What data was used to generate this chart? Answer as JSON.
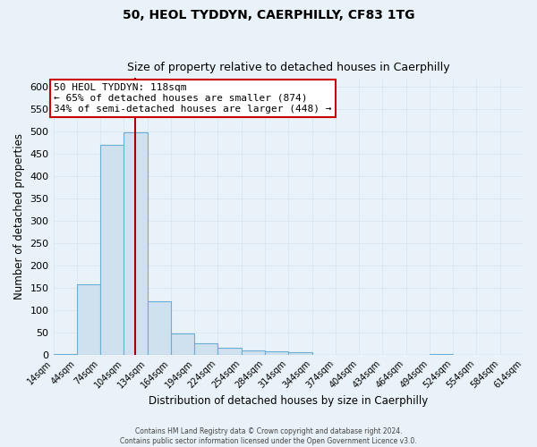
{
  "title": "50, HEOL TYDDYN, CAERPHILLY, CF83 1TG",
  "subtitle": "Size of property relative to detached houses in Caerphilly",
  "xlabel": "Distribution of detached houses by size in Caerphilly",
  "ylabel": "Number of detached properties",
  "bin_edges": [
    14,
    44,
    74,
    104,
    134,
    164,
    194,
    224,
    254,
    284,
    314,
    344,
    374,
    404,
    434,
    464,
    494,
    524,
    554,
    584,
    614
  ],
  "counts": [
    2,
    158,
    470,
    498,
    120,
    47,
    25,
    15,
    10,
    8,
    5,
    0,
    0,
    0,
    0,
    0,
    2,
    0,
    0,
    0
  ],
  "bar_color": "#cfe0ef",
  "bar_edge_color": "#6aaed6",
  "vline_color": "#aa0000",
  "vline_x": 118,
  "annotation_line0": "50 HEOL TYDDYN: 118sqm",
  "annotation_line1": "← 65% of detached houses are smaller (874)",
  "annotation_line2": "34% of semi-detached houses are larger (448) →",
  "annotation_box_color": "#ffffff",
  "annotation_box_edge": "#cc0000",
  "ylim": [
    0,
    620
  ],
  "yticks": [
    0,
    50,
    100,
    150,
    200,
    250,
    300,
    350,
    400,
    450,
    500,
    550,
    600
  ],
  "grid_color": "#dce8f0",
  "plot_bg_color": "#e8f2f8",
  "fig_bg_color": "#e8f2f8",
  "footer_line1": "Contains HM Land Registry data © Crown copyright and database right 2024.",
  "footer_line2": "Contains public sector information licensed under the Open Government Licence v3.0."
}
